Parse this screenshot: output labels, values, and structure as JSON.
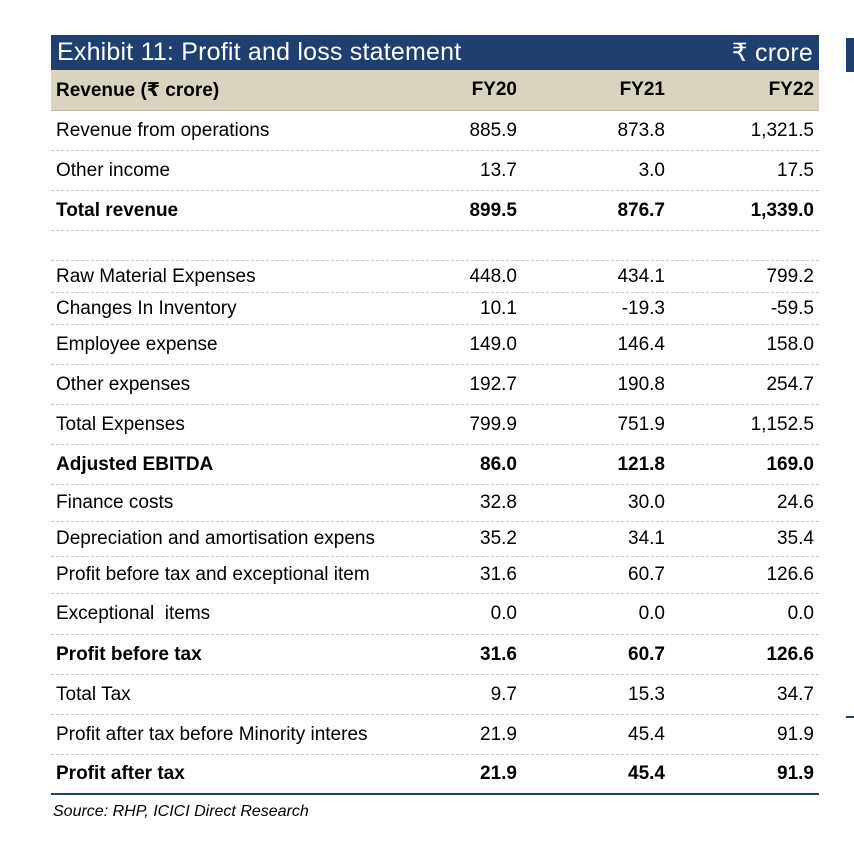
{
  "exhibit": {
    "title": "Exhibit 11: Profit and loss statement",
    "unit": "₹ crore"
  },
  "table": {
    "header": {
      "label": "Revenue (₹ crore)",
      "fy20": "FY20",
      "fy21": "FY21",
      "fy22": "FY22"
    },
    "rows": [
      {
        "label": "Revenue from operations",
        "fy20": "885.9",
        "fy21": "873.8",
        "fy22": "1,321.5",
        "bold": false
      },
      {
        "label": "Other income",
        "fy20": "13.7",
        "fy21": "3.0",
        "fy22": "17.5",
        "bold": false
      },
      {
        "label": "Total revenue",
        "fy20": "899.5",
        "fy21": "876.7",
        "fy22": "1,339.0",
        "bold": true
      },
      {
        "label": "Raw Material Expenses",
        "fy20": "448.0",
        "fy21": "434.1",
        "fy22": "799.2",
        "bold": false
      },
      {
        "label": "Changes In Inventory",
        "fy20": "10.1",
        "fy21": "-19.3",
        "fy22": "-59.5",
        "bold": false
      },
      {
        "label": "Employee expense",
        "fy20": "149.0",
        "fy21": "146.4",
        "fy22": "158.0",
        "bold": false
      },
      {
        "label": "Other expenses",
        "fy20": "192.7",
        "fy21": "190.8",
        "fy22": "254.7",
        "bold": false
      },
      {
        "label": "Total Expenses",
        "fy20": "799.9",
        "fy21": "751.9",
        "fy22": "1,152.5",
        "bold": false
      },
      {
        "label": "Adjusted EBITDA",
        "fy20": "86.0",
        "fy21": "121.8",
        "fy22": "169.0",
        "bold": true
      },
      {
        "label": "Finance costs",
        "fy20": "32.8",
        "fy21": "30.0",
        "fy22": "24.6",
        "bold": false
      },
      {
        "label": "Depreciation and amortisation expens",
        "fy20": "35.2",
        "fy21": "34.1",
        "fy22": "35.4",
        "bold": false
      },
      {
        "label": "Profit before tax and exceptional item",
        "fy20": "31.6",
        "fy21": "60.7",
        "fy22": "126.6",
        "bold": false
      },
      {
        "label": "Exceptional  items",
        "fy20": "0.0",
        "fy21": "0.0",
        "fy22": "0.0",
        "bold": false
      },
      {
        "label": "Profit before tax",
        "fy20": "31.6",
        "fy21": "60.7",
        "fy22": "126.6",
        "bold": true
      },
      {
        "label": "Total Tax",
        "fy20": "9.7",
        "fy21": "15.3",
        "fy22": "34.7",
        "bold": false
      },
      {
        "label": "Profit after tax before Minority interes",
        "fy20": "21.9",
        "fy21": "45.4",
        "fy22": "91.9",
        "bold": false
      },
      {
        "label": "Profit after tax",
        "fy20": "21.9",
        "fy21": "45.4",
        "fy22": "91.9",
        "bold": true
      }
    ]
  },
  "source": "Source: RHP, ICICI Direct Research"
}
